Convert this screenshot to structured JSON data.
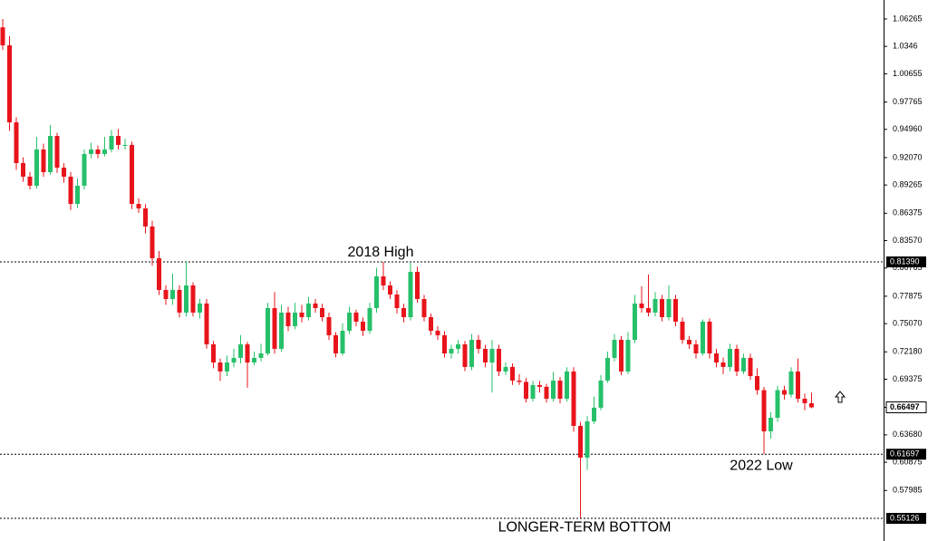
{
  "chart_data": {
    "type": "candlestick",
    "up_color": "#26c06a",
    "down_color": "#e8141b",
    "ylim": [
      0.5281,
      1.0821
    ],
    "yticks": [
      1.06265,
      1.0346,
      {
        "value": 1.00655,
        "label": "1.00655"
      },
      0.97765,
      {
        "value": 0.9496,
        "label": "0.94960"
      },
      {
        "value": 0.9207,
        "label": "0.92070"
      },
      0.89265,
      0.86375,
      {
        "value": 0.8357,
        "label": "0.83570"
      },
      0.80765,
      0.77875,
      {
        "value": 0.7507,
        "label": "0.75070"
      },
      {
        "value": 0.7218,
        "label": "0.72180"
      },
      0.69375,
      {
        "value": 0.6368,
        "label": "0.63680"
      },
      0.60875,
      0.57985
    ],
    "levels": [
      {
        "value": 0.8139,
        "label": "0.81390",
        "annotation": "2018 High"
      },
      {
        "value": 0.61697,
        "label": "0.61697",
        "annotation": "2022 Low"
      },
      {
        "value": 0.55126,
        "label": "0.55126",
        "annotation": "LONGER-TERM BOTTOM"
      }
    ],
    "current_price": {
      "value": 0.66497,
      "label": "0.66497"
    },
    "candles": [
      [
        1.0541,
        1.0626,
        1.031,
        1.0357
      ],
      [
        1.0357,
        1.045,
        0.948,
        0.9568
      ],
      [
        0.9568,
        0.962,
        0.908,
        0.9151
      ],
      [
        0.9151,
        0.921,
        0.896,
        0.9012
      ],
      [
        0.9012,
        0.906,
        0.888,
        0.8919
      ],
      [
        0.8919,
        0.942,
        0.889,
        0.929
      ],
      [
        0.929,
        0.935,
        0.901,
        0.9058
      ],
      [
        0.9058,
        0.954,
        0.903,
        0.9429
      ],
      [
        0.9429,
        0.946,
        0.905,
        0.9104
      ],
      [
        0.9104,
        0.915,
        0.895,
        0.9012
      ],
      [
        0.9012,
        0.906,
        0.867,
        0.8733
      ],
      [
        0.8733,
        0.899,
        0.869,
        0.8919
      ],
      [
        0.8919,
        0.929,
        0.888,
        0.9244
      ],
      [
        0.9244,
        0.936,
        0.92,
        0.929
      ],
      [
        0.929,
        0.933,
        0.92,
        0.9244
      ],
      [
        0.9244,
        0.942,
        0.922,
        0.929
      ],
      [
        0.929,
        0.949,
        0.926,
        0.9429
      ],
      [
        0.9429,
        0.95,
        0.929,
        0.9337
      ],
      [
        0.9337,
        0.94,
        0.929,
        0.9337
      ],
      [
        0.9337,
        0.937,
        0.868,
        0.8733
      ],
      [
        0.8733,
        0.879,
        0.864,
        0.8687
      ],
      [
        0.8687,
        0.873,
        0.843,
        0.8502
      ],
      [
        0.8502,
        0.856,
        0.81,
        0.8177
      ],
      [
        0.8177,
        0.825,
        0.78,
        0.7852
      ],
      [
        0.7852,
        0.79,
        0.77,
        0.7759
      ],
      [
        0.7759,
        0.802,
        0.77,
        0.7852
      ],
      [
        0.7852,
        0.79,
        0.757,
        0.762
      ],
      [
        0.762,
        0.815,
        0.758,
        0.7898
      ],
      [
        0.7898,
        0.793,
        0.758,
        0.762
      ],
      [
        0.762,
        0.776,
        0.756,
        0.7713
      ],
      [
        0.7713,
        0.776,
        0.725,
        0.7295
      ],
      [
        0.7295,
        0.733,
        0.705,
        0.7109
      ],
      [
        0.7109,
        0.715,
        0.692,
        0.7017
      ],
      [
        0.7017,
        0.718,
        0.697,
        0.7109
      ],
      [
        0.7109,
        0.725,
        0.706,
        0.7156
      ],
      [
        0.7156,
        0.739,
        0.71,
        0.7295
      ],
      [
        0.7295,
        0.732,
        0.685,
        0.7109
      ],
      [
        0.7109,
        0.722,
        0.708,
        0.7156
      ],
      [
        0.7156,
        0.73,
        0.712,
        0.7202
      ],
      [
        0.7202,
        0.772,
        0.718,
        0.7666
      ],
      [
        0.7666,
        0.783,
        0.72,
        0.7249
      ],
      [
        0.7249,
        0.77,
        0.722,
        0.762
      ],
      [
        0.762,
        0.768,
        0.743,
        0.7481
      ],
      [
        0.7481,
        0.772,
        0.745,
        0.762
      ],
      [
        0.762,
        0.77,
        0.752,
        0.7573
      ],
      [
        0.7573,
        0.778,
        0.754,
        0.7713
      ],
      [
        0.7713,
        0.776,
        0.762,
        0.7666
      ],
      [
        0.7666,
        0.771,
        0.753,
        0.7573
      ],
      [
        0.7573,
        0.762,
        0.734,
        0.7388
      ],
      [
        0.7388,
        0.742,
        0.716,
        0.7202
      ],
      [
        0.7202,
        0.751,
        0.718,
        0.7434
      ],
      [
        0.7434,
        0.768,
        0.74,
        0.762
      ],
      [
        0.762,
        0.765,
        0.748,
        0.7527
      ],
      [
        0.7527,
        0.757,
        0.738,
        0.7434
      ],
      [
        0.7434,
        0.772,
        0.74,
        0.7666
      ],
      [
        0.7666,
        0.808,
        0.762,
        0.7991
      ],
      [
        0.7991,
        0.8139,
        0.785,
        0.7898
      ],
      [
        0.7898,
        0.794,
        0.776,
        0.7805
      ],
      [
        0.7805,
        0.785,
        0.761,
        0.7666
      ],
      [
        0.7666,
        0.771,
        0.752,
        0.7573
      ],
      [
        0.7573,
        0.813,
        0.754,
        0.8037
      ],
      [
        0.8037,
        0.809,
        0.772,
        0.7759
      ],
      [
        0.7759,
        0.78,
        0.753,
        0.7573
      ],
      [
        0.7573,
        0.761,
        0.739,
        0.7434
      ],
      [
        0.7434,
        0.748,
        0.734,
        0.7388
      ],
      [
        0.7388,
        0.743,
        0.716,
        0.7202
      ],
      [
        0.7202,
        0.729,
        0.715,
        0.7249
      ],
      [
        0.7249,
        0.734,
        0.72,
        0.7295
      ],
      [
        0.7295,
        0.733,
        0.702,
        0.7063
      ],
      [
        0.7063,
        0.74,
        0.703,
        0.7341
      ],
      [
        0.7341,
        0.739,
        0.72,
        0.7249
      ],
      [
        0.7249,
        0.729,
        0.706,
        0.7109
      ],
      [
        0.7109,
        0.734,
        0.68,
        0.7249
      ],
      [
        0.7249,
        0.729,
        0.697,
        0.7017
      ],
      [
        0.7017,
        0.711,
        0.698,
        0.7063
      ],
      [
        0.7063,
        0.71,
        0.688,
        0.6924
      ],
      [
        0.6924,
        0.699,
        0.688,
        0.691
      ],
      [
        0.691,
        0.695,
        0.67,
        0.6738
      ],
      [
        0.6738,
        0.692,
        0.671,
        0.6878
      ],
      [
        0.6878,
        0.692,
        0.68,
        0.686
      ],
      [
        0.686,
        0.689,
        0.67,
        0.6738
      ],
      [
        0.6738,
        0.701,
        0.671,
        0.6924
      ],
      [
        0.6924,
        0.696,
        0.669,
        0.6738
      ],
      [
        0.6738,
        0.706,
        0.671,
        0.7017
      ],
      [
        0.7017,
        0.706,
        0.64,
        0.646
      ],
      [
        0.646,
        0.65,
        0.55126,
        0.6135
      ],
      [
        0.6135,
        0.656,
        0.601,
        0.6506
      ],
      [
        0.6506,
        0.676,
        0.648,
        0.6646
      ],
      [
        0.6646,
        0.698,
        0.662,
        0.6924
      ],
      [
        0.6924,
        0.722,
        0.69,
        0.7156
      ],
      [
        0.7156,
        0.74,
        0.712,
        0.7341
      ],
      [
        0.7341,
        0.738,
        0.698,
        0.7017
      ],
      [
        0.7017,
        0.742,
        0.699,
        0.7341
      ],
      [
        0.7341,
        0.78,
        0.731,
        0.7713
      ],
      [
        0.7713,
        0.789,
        0.762,
        0.7666
      ],
      [
        0.7666,
        0.801,
        0.758,
        0.762
      ],
      [
        0.762,
        0.783,
        0.758,
        0.7759
      ],
      [
        0.7759,
        0.78,
        0.753,
        0.7573
      ],
      [
        0.7573,
        0.79,
        0.754,
        0.7759
      ],
      [
        0.7759,
        0.78,
        0.748,
        0.7527
      ],
      [
        0.7527,
        0.757,
        0.73,
        0.7341
      ],
      [
        0.7341,
        0.738,
        0.725,
        0.7295
      ],
      [
        0.7295,
        0.734,
        0.715,
        0.7202
      ],
      [
        0.7202,
        0.755,
        0.718,
        0.7527
      ],
      [
        0.7527,
        0.756,
        0.715,
        0.7202
      ],
      [
        0.7202,
        0.725,
        0.706,
        0.7109
      ],
      [
        0.7109,
        0.716,
        0.699,
        0.7063
      ],
      [
        0.7063,
        0.73,
        0.702,
        0.7249
      ],
      [
        0.7249,
        0.729,
        0.697,
        0.7017
      ],
      [
        0.7017,
        0.72,
        0.699,
        0.7156
      ],
      [
        0.7156,
        0.72,
        0.693,
        0.697
      ],
      [
        0.697,
        0.705,
        0.678,
        0.6826
      ],
      [
        0.6826,
        0.686,
        0.61697,
        0.6404
      ],
      [
        0.6404,
        0.66,
        0.633,
        0.6543
      ],
      [
        0.6543,
        0.687,
        0.65,
        0.6826
      ],
      [
        0.6826,
        0.687,
        0.673,
        0.678
      ],
      [
        0.678,
        0.706,
        0.675,
        0.7017
      ],
      [
        0.7017,
        0.715,
        0.67,
        0.6738
      ],
      [
        0.6738,
        0.679,
        0.662,
        0.6692
      ],
      [
        0.6692,
        0.68,
        0.664,
        0.66497
      ]
    ]
  }
}
